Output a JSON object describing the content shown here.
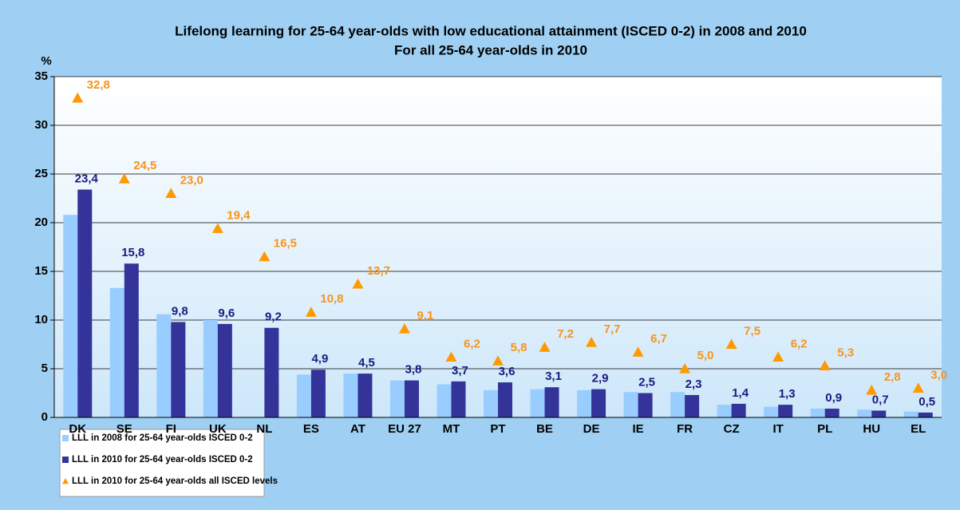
{
  "chart_data": {
    "type": "bar",
    "title": "Lifelong learning for 25-64 year-olds with low educational attainment (ISCED 0-2)  in 2008 and 2010",
    "subtitle": "For all 25-64 year-olds in 2010",
    "y_label": "%",
    "categories": [
      "DK",
      "SE",
      "FI",
      "UK",
      "NL",
      "ES",
      "AT",
      "EU 27",
      "MT",
      "PT",
      "BE",
      "DE",
      "IE",
      "FR",
      "CZ",
      "IT",
      "PL",
      "HU",
      "EL"
    ],
    "ylim": [
      0,
      35
    ],
    "yticks": [
      0,
      5,
      10,
      15,
      20,
      25,
      30,
      35
    ],
    "grid": true,
    "series": [
      {
        "name": "LLL in 2008 for 25-64 year-olds ISCED 0-2",
        "color": "#99ccff",
        "mark": "bar",
        "values": [
          20.8,
          13.3,
          10.6,
          10.0,
          null,
          4.4,
          4.5,
          3.8,
          3.4,
          2.8,
          2.9,
          2.8,
          2.6,
          2.6,
          1.3,
          1.1,
          0.9,
          0.8,
          0.6
        ]
      },
      {
        "name": "LLL in 2010 for 25-64 year-olds ISCED 0-2",
        "color": "#333399",
        "mark": "bar",
        "values": [
          23.4,
          15.8,
          9.8,
          9.6,
          9.2,
          4.9,
          4.5,
          3.8,
          3.7,
          3.6,
          3.1,
          2.9,
          2.5,
          2.3,
          1.4,
          1.3,
          0.9,
          0.7,
          0.5
        ],
        "value_labels": [
          "23,4",
          "15,8",
          "9,8",
          "9,6",
          "9,2",
          "4,9",
          "4,5",
          "3,8",
          "3,7",
          "3,6",
          "3,1",
          "2,9",
          "2,5",
          "2,3",
          "1,4",
          "1,3",
          "0,9",
          "0,7",
          "0,5"
        ]
      },
      {
        "name": "LLL in 2010 for 25-64 year-olds all ISCED levels",
        "color": "#ff9900",
        "mark": "triangle",
        "values": [
          32.8,
          24.5,
          23.0,
          19.4,
          16.5,
          10.8,
          13.7,
          9.1,
          6.2,
          5.8,
          7.2,
          7.7,
          6.7,
          5.0,
          7.5,
          6.2,
          5.3,
          2.8,
          3.0
        ],
        "value_labels": [
          "32,8",
          "24,5",
          "23,0",
          "19,4",
          "16,5",
          "10,8",
          "13,7",
          "9,1",
          "6,2",
          "5,8",
          "7,2",
          "7,7",
          "6,7",
          "5,0",
          "7,5",
          "6,2",
          "5,3",
          "2,8",
          "3,0"
        ]
      }
    ]
  }
}
